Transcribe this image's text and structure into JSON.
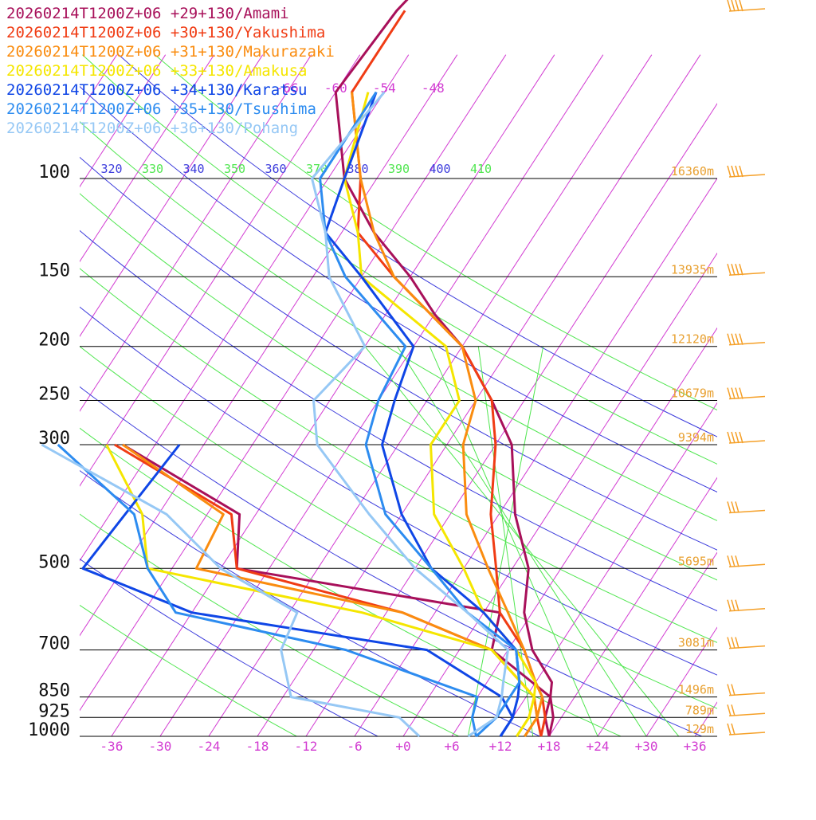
{
  "chart_data": {
    "type": "line",
    "kind": "skew-T log-P sounding",
    "legend_position": "top-left",
    "series": [
      {
        "name": "20260214T1200Z+06 +29+130/Amami",
        "color": "#a8105a",
        "points": [
          [
            1000,
            18
          ],
          [
            925,
            17
          ],
          [
            850,
            15
          ],
          [
            800,
            14
          ],
          [
            700,
            9
          ],
          [
            600,
            5
          ],
          [
            500,
            2
          ],
          [
            400,
            -4
          ],
          [
            300,
            -10
          ],
          [
            250,
            -16
          ],
          [
            200,
            -24
          ],
          [
            175,
            -30
          ],
          [
            150,
            -36
          ],
          [
            125,
            -44
          ],
          [
            100,
            -52
          ],
          [
            70,
            -60
          ],
          [
            50,
            -59
          ],
          [
            40,
            -57
          ]
        ]
      },
      {
        "name": "20260214T1200Z+06 +30+130/Yakushima",
        "color": "#f03c14",
        "points": [
          [
            1000,
            17
          ],
          [
            925,
            16
          ],
          [
            850,
            14
          ],
          [
            800,
            12
          ],
          [
            700,
            8
          ],
          [
            600,
            2
          ],
          [
            500,
            -2
          ],
          [
            400,
            -7
          ],
          [
            300,
            -12
          ],
          [
            250,
            -16
          ],
          [
            200,
            -24
          ],
          [
            150,
            -38
          ],
          [
            125,
            -46
          ],
          [
            100,
            -50
          ],
          [
            70,
            -58
          ],
          [
            50,
            -58
          ]
        ]
      },
      {
        "name": "20260214T1200Z+06 +31+130/Makurazaki",
        "color": "#fa8c0f",
        "points": [
          [
            1000,
            15
          ],
          [
            925,
            15
          ],
          [
            850,
            14
          ],
          [
            800,
            12
          ],
          [
            700,
            8
          ],
          [
            600,
            3
          ],
          [
            500,
            -3
          ],
          [
            400,
            -10
          ],
          [
            300,
            -16
          ],
          [
            250,
            -18
          ],
          [
            200,
            -24
          ],
          [
            150,
            -38
          ],
          [
            125,
            -44
          ],
          [
            100,
            -50
          ],
          [
            70,
            -58
          ]
        ]
      },
      {
        "name": "20260214T1200Z+06 +33+130/Amakusa",
        "color": "#f5e600",
        "points": [
          [
            1000,
            14
          ],
          [
            925,
            14
          ],
          [
            850,
            13
          ],
          [
            800,
            12
          ],
          [
            700,
            7
          ],
          [
            600,
            0
          ],
          [
            500,
            -6
          ],
          [
            400,
            -14
          ],
          [
            300,
            -20
          ],
          [
            250,
            -20
          ],
          [
            200,
            -26
          ],
          [
            150,
            -42
          ],
          [
            125,
            -46
          ],
          [
            100,
            -52
          ],
          [
            70,
            -56
          ]
        ]
      },
      {
        "name": "20260214T1200Z+06 +34+130/Karatsu",
        "color": "#0f46e6",
        "points": [
          [
            1000,
            12
          ],
          [
            925,
            12
          ],
          [
            850,
            11
          ],
          [
            800,
            10
          ],
          [
            700,
            7
          ],
          [
            600,
            0
          ],
          [
            500,
            -10
          ],
          [
            400,
            -18
          ],
          [
            300,
            -26
          ],
          [
            250,
            -28
          ],
          [
            200,
            -30
          ],
          [
            150,
            -42
          ],
          [
            125,
            -50
          ],
          [
            100,
            -52
          ],
          [
            70,
            -55
          ]
        ]
      },
      {
        "name": "20260214T1200Z+06 +35+130/Tsushima",
        "color": "#2d8cf0",
        "points": [
          [
            1000,
            9
          ],
          [
            925,
            10
          ],
          [
            850,
            10
          ],
          [
            800,
            10
          ],
          [
            700,
            7
          ],
          [
            600,
            -2
          ],
          [
            500,
            -10
          ],
          [
            400,
            -20
          ],
          [
            300,
            -28
          ],
          [
            250,
            -30
          ],
          [
            200,
            -31
          ],
          [
            150,
            -44
          ],
          [
            125,
            -50
          ],
          [
            100,
            -55
          ],
          [
            70,
            -55
          ]
        ]
      },
      {
        "name": "20260214T1200Z+06 +36+130/Pohang",
        "color": "#96c8f5",
        "points": [
          [
            1000,
            8
          ],
          [
            925,
            10
          ],
          [
            850,
            9
          ],
          [
            800,
            8
          ],
          [
            700,
            6
          ],
          [
            600,
            -2
          ],
          [
            500,
            -12
          ],
          [
            400,
            -22
          ],
          [
            300,
            -34
          ],
          [
            250,
            -38
          ],
          [
            200,
            -36
          ],
          [
            150,
            -46
          ],
          [
            125,
            -50
          ],
          [
            100,
            -56
          ],
          [
            70,
            -54
          ]
        ]
      }
    ],
    "dewpoint_series": [
      {
        "name": "20260214T1200Z+06 +29+130/Amami",
        "color": "#a8105a",
        "points": [
          [
            1000,
            18
          ],
          [
            925,
            16
          ],
          [
            850,
            15
          ],
          [
            700,
            4
          ],
          [
            600,
            2
          ],
          [
            500,
            -34
          ],
          [
            400,
            -38
          ],
          [
            300,
            -58
          ]
        ]
      },
      {
        "name": "20260214T1200Z+06 +30+130/Yakushima",
        "color": "#f03c14",
        "points": [
          [
            1000,
            17
          ],
          [
            925,
            15
          ],
          [
            850,
            13
          ],
          [
            700,
            4
          ],
          [
            600,
            -10
          ],
          [
            500,
            -34
          ],
          [
            400,
            -39
          ],
          [
            300,
            -59
          ]
        ]
      },
      {
        "name": "20260214T1200Z+06 +31+130/Makurazaki",
        "color": "#fa8c0f",
        "points": [
          [
            1000,
            15
          ],
          [
            925,
            15
          ],
          [
            850,
            13
          ],
          [
            700,
            4
          ],
          [
            600,
            -10
          ],
          [
            500,
            -39
          ],
          [
            400,
            -40
          ],
          [
            300,
            -58
          ]
        ]
      },
      {
        "name": "20260214T1200Z+06 +33+130/Amakusa",
        "color": "#f5e600",
        "points": [
          [
            1000,
            14
          ],
          [
            925,
            14
          ],
          [
            850,
            13
          ],
          [
            700,
            4
          ],
          [
            600,
            -15
          ],
          [
            500,
            -45
          ],
          [
            400,
            -50
          ],
          [
            300,
            -60
          ]
        ]
      },
      {
        "name": "20260214T1200Z+06 +34+130/Karatsu",
        "color": "#0f46e6",
        "points": [
          [
            1000,
            12
          ],
          [
            925,
            12
          ],
          [
            850,
            9
          ],
          [
            700,
            -4
          ],
          [
            600,
            -36
          ],
          [
            500,
            -53
          ],
          [
            300,
            -51
          ]
        ]
      },
      {
        "name": "20260214T1200Z+06 +35+130/Tsushima",
        "color": "#2d8cf0",
        "points": [
          [
            1000,
            9
          ],
          [
            925,
            7
          ],
          [
            850,
            6
          ],
          [
            700,
            -14
          ],
          [
            600,
            -38
          ],
          [
            500,
            -45
          ],
          [
            400,
            -51
          ],
          [
            300,
            -66
          ]
        ]
      },
      {
        "name": "20260214T1200Z+06 +36+130/Pohang",
        "color": "#96c8f5",
        "points": [
          [
            1000,
            2
          ],
          [
            925,
            -2
          ],
          [
            850,
            -17
          ],
          [
            700,
            -22
          ],
          [
            600,
            -23
          ],
          [
            500,
            -36
          ],
          [
            400,
            -47
          ],
          [
            300,
            -68
          ]
        ]
      }
    ],
    "y_axis": {
      "scale": "log",
      "units": "hPa",
      "ylim": [
        1000,
        100
      ],
      "ticks": [
        "100",
        "150",
        "200",
        "250",
        "300",
        "500",
        "700",
        "850",
        "925",
        "1000"
      ]
    },
    "x_axis": {
      "units": "°C",
      "xlim": [
        -40,
        40
      ],
      "ticks": [
        "-36",
        "-30",
        "-24",
        "-18",
        "-12",
        "-6",
        "+0",
        "+6",
        "+12",
        "+18",
        "+24",
        "+30",
        "+36"
      ]
    },
    "skewed_isotherm_labels": [
      "-66",
      "-60",
      "-54",
      "-48"
    ],
    "theta_labels": [
      "320",
      "330",
      "340",
      "350",
      "360",
      "370",
      "380",
      "390",
      "400",
      "410"
    ],
    "heights": [
      {
        "p": 100,
        "label": "16360m"
      },
      {
        "p": 150,
        "label": "13935m"
      },
      {
        "p": 200,
        "label": "12120m"
      },
      {
        "p": 250,
        "label": "10679m"
      },
      {
        "p": 300,
        "label": "9394m"
      },
      {
        "p": 500,
        "label": "5695m"
      },
      {
        "p": 700,
        "label": "3081m"
      },
      {
        "p": 850,
        "label": "1496m"
      },
      {
        "p": 925,
        "label": "789m"
      },
      {
        "p": 1000,
        "label": "129m"
      }
    ],
    "wind_barbs_at": [
      70,
      100,
      150,
      200,
      250,
      300,
      400,
      500,
      600,
      700,
      850,
      925,
      1000
    ],
    "colors": {
      "isotherm": "#d23cd2",
      "isobar": "#000000",
      "dry_adiabat": "#3c3cdc",
      "moist_adiabat": "#50e650",
      "wind_barb": "#f5a028"
    }
  }
}
